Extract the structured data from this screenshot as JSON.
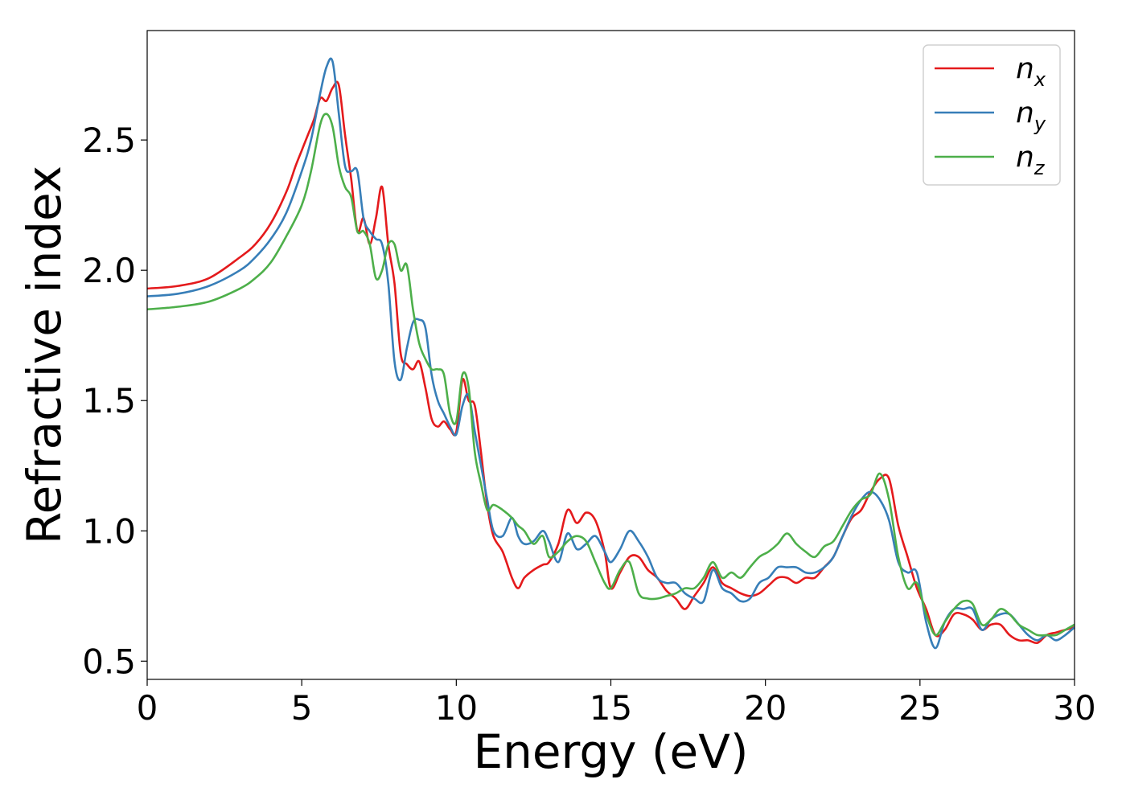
{
  "chart_data": {
    "type": "line",
    "title": "",
    "xlabel": "Energy (eV)",
    "ylabel": "Refractive index",
    "xlim": [
      0,
      30
    ],
    "ylim": [
      0.43,
      2.92
    ],
    "xticks": [
      0,
      5,
      10,
      15,
      20,
      25,
      30
    ],
    "xtick_labels": [
      "0",
      "5",
      "10",
      "15",
      "20",
      "25",
      "30"
    ],
    "yticks": [
      0.5,
      1.0,
      1.5,
      2.0,
      2.5
    ],
    "ytick_labels": [
      "0.5",
      "1.0",
      "1.5",
      "2.0",
      "2.5"
    ],
    "grid": false,
    "legend_position": "top-right",
    "series": [
      {
        "name": "n",
        "subscript": "x",
        "color": "#e41a1c",
        "x": [
          0,
          1,
          2,
          3,
          3.5,
          4,
          4.5,
          4.8,
          5.0,
          5.2,
          5.4,
          5.6,
          5.8,
          6.0,
          6.2,
          6.4,
          6.6,
          6.8,
          7.0,
          7.2,
          7.4,
          7.6,
          7.8,
          8.0,
          8.2,
          8.4,
          8.6,
          8.8,
          9.0,
          9.2,
          9.4,
          9.6,
          9.8,
          10.0,
          10.2,
          10.4,
          10.6,
          10.8,
          11.0,
          11.2,
          11.5,
          11.8,
          12.0,
          12.2,
          12.5,
          12.8,
          13.0,
          13.3,
          13.6,
          13.9,
          14.2,
          14.5,
          14.8,
          15.0,
          15.3,
          15.6,
          15.9,
          16.2,
          16.5,
          16.8,
          17.1,
          17.4,
          17.7,
          18.0,
          18.3,
          18.6,
          18.9,
          19.2,
          19.5,
          19.8,
          20.1,
          20.4,
          20.7,
          21.0,
          21.3,
          21.6,
          21.9,
          22.2,
          22.5,
          22.8,
          23.1,
          23.4,
          23.7,
          24.0,
          24.3,
          24.6,
          24.9,
          25.2,
          25.5,
          25.8,
          26.1,
          26.4,
          26.7,
          27.0,
          27.3,
          27.6,
          27.9,
          28.2,
          28.5,
          28.8,
          29.1,
          29.4,
          29.7,
          30.0
        ],
        "y": [
          1.93,
          1.94,
          1.97,
          2.05,
          2.1,
          2.18,
          2.3,
          2.4,
          2.46,
          2.52,
          2.58,
          2.66,
          2.65,
          2.7,
          2.71,
          2.52,
          2.35,
          2.15,
          2.2,
          2.1,
          2.2,
          2.32,
          2.1,
          1.95,
          1.68,
          1.64,
          1.62,
          1.65,
          1.55,
          1.43,
          1.4,
          1.42,
          1.39,
          1.38,
          1.58,
          1.5,
          1.48,
          1.3,
          1.1,
          0.98,
          0.92,
          0.82,
          0.78,
          0.82,
          0.85,
          0.87,
          0.88,
          0.95,
          1.08,
          1.03,
          1.07,
          1.04,
          0.92,
          0.78,
          0.84,
          0.9,
          0.9,
          0.85,
          0.82,
          0.77,
          0.74,
          0.7,
          0.75,
          0.8,
          0.86,
          0.8,
          0.78,
          0.76,
          0.75,
          0.76,
          0.79,
          0.82,
          0.82,
          0.8,
          0.82,
          0.82,
          0.86,
          0.9,
          0.98,
          1.05,
          1.08,
          1.15,
          1.2,
          1.2,
          1.02,
          0.9,
          0.78,
          0.7,
          0.6,
          0.62,
          0.68,
          0.68,
          0.66,
          0.62,
          0.64,
          0.64,
          0.6,
          0.58,
          0.58,
          0.57,
          0.6,
          0.61,
          0.62,
          0.63
        ]
      },
      {
        "name": "n",
        "subscript": "y",
        "color": "#377eb8",
        "x": [
          0,
          1,
          2,
          3,
          3.5,
          4,
          4.5,
          5.0,
          5.3,
          5.6,
          5.8,
          6.0,
          6.2,
          6.4,
          6.6,
          6.8,
          7.0,
          7.2,
          7.4,
          7.6,
          7.8,
          8.0,
          8.2,
          8.4,
          8.6,
          8.8,
          9.0,
          9.2,
          9.4,
          9.6,
          9.8,
          10.0,
          10.2,
          10.4,
          10.6,
          10.8,
          11.0,
          11.2,
          11.5,
          11.8,
          12.0,
          12.2,
          12.5,
          12.8,
          13.0,
          13.3,
          13.6,
          13.9,
          14.2,
          14.5,
          14.8,
          15.0,
          15.3,
          15.6,
          15.9,
          16.2,
          16.5,
          16.8,
          17.1,
          17.4,
          17.7,
          18.0,
          18.3,
          18.6,
          18.9,
          19.2,
          19.5,
          19.8,
          20.1,
          20.4,
          20.7,
          21.0,
          21.3,
          21.6,
          21.9,
          22.2,
          22.5,
          22.8,
          23.1,
          23.4,
          23.7,
          24.0,
          24.3,
          24.6,
          24.9,
          25.2,
          25.5,
          25.8,
          26.1,
          26.4,
          26.7,
          27.0,
          27.3,
          27.6,
          27.9,
          28.2,
          28.5,
          28.8,
          29.1,
          29.4,
          29.7,
          30.0
        ],
        "y": [
          1.9,
          1.91,
          1.94,
          2.0,
          2.05,
          2.12,
          2.22,
          2.38,
          2.5,
          2.68,
          2.78,
          2.8,
          2.6,
          2.4,
          2.38,
          2.38,
          2.2,
          2.15,
          2.12,
          2.1,
          1.95,
          1.65,
          1.58,
          1.7,
          1.8,
          1.81,
          1.78,
          1.6,
          1.5,
          1.45,
          1.4,
          1.37,
          1.48,
          1.52,
          1.38,
          1.25,
          1.12,
          1.0,
          0.98,
          1.05,
          0.98,
          0.95,
          0.96,
          1.0,
          0.96,
          0.88,
          0.99,
          0.93,
          0.95,
          0.98,
          0.92,
          0.88,
          0.93,
          1.0,
          0.96,
          0.9,
          0.82,
          0.8,
          0.8,
          0.76,
          0.74,
          0.73,
          0.85,
          0.78,
          0.76,
          0.73,
          0.74,
          0.8,
          0.82,
          0.86,
          0.86,
          0.86,
          0.84,
          0.84,
          0.86,
          0.9,
          0.98,
          1.06,
          1.12,
          1.15,
          1.12,
          1.04,
          0.88,
          0.84,
          0.84,
          0.65,
          0.55,
          0.65,
          0.7,
          0.7,
          0.7,
          0.62,
          0.66,
          0.68,
          0.68,
          0.64,
          0.6,
          0.58,
          0.6,
          0.58,
          0.6,
          0.63
        ]
      },
      {
        "name": "n",
        "subscript": "z",
        "color": "#4daf4a",
        "x": [
          0,
          1,
          2,
          3,
          3.5,
          4,
          4.5,
          5.0,
          5.3,
          5.6,
          5.8,
          6.0,
          6.2,
          6.4,
          6.6,
          6.8,
          7.0,
          7.2,
          7.4,
          7.6,
          7.8,
          8.0,
          8.2,
          8.4,
          8.6,
          8.8,
          9.0,
          9.2,
          9.4,
          9.6,
          9.8,
          10.0,
          10.2,
          10.4,
          10.6,
          10.8,
          11.0,
          11.2,
          11.5,
          11.8,
          12.0,
          12.2,
          12.5,
          12.8,
          13.0,
          13.3,
          13.6,
          13.9,
          14.2,
          14.5,
          14.8,
          15.0,
          15.3,
          15.6,
          15.9,
          16.2,
          16.5,
          16.8,
          17.1,
          17.4,
          17.7,
          18.0,
          18.3,
          18.6,
          18.9,
          19.2,
          19.5,
          19.8,
          20.1,
          20.4,
          20.7,
          21.0,
          21.3,
          21.6,
          21.9,
          22.2,
          22.5,
          22.8,
          23.1,
          23.4,
          23.7,
          24.0,
          24.3,
          24.6,
          24.9,
          25.2,
          25.5,
          25.8,
          26.1,
          26.4,
          26.7,
          27.0,
          27.3,
          27.6,
          27.9,
          28.2,
          28.5,
          28.8,
          29.1,
          29.4,
          29.7,
          30.0
        ],
        "y": [
          1.85,
          1.86,
          1.88,
          1.93,
          1.97,
          2.03,
          2.13,
          2.25,
          2.38,
          2.56,
          2.6,
          2.55,
          2.4,
          2.32,
          2.28,
          2.15,
          2.15,
          2.1,
          1.97,
          2.0,
          2.1,
          2.1,
          2.0,
          2.02,
          1.85,
          1.72,
          1.66,
          1.62,
          1.62,
          1.6,
          1.45,
          1.42,
          1.6,
          1.55,
          1.3,
          1.18,
          1.08,
          1.1,
          1.08,
          1.05,
          1.02,
          1.0,
          0.95,
          0.98,
          0.9,
          0.92,
          0.96,
          0.98,
          0.96,
          0.88,
          0.8,
          0.78,
          0.85,
          0.88,
          0.76,
          0.74,
          0.74,
          0.75,
          0.76,
          0.78,
          0.78,
          0.82,
          0.88,
          0.82,
          0.84,
          0.82,
          0.86,
          0.9,
          0.92,
          0.95,
          0.99,
          0.95,
          0.92,
          0.9,
          0.94,
          0.96,
          1.02,
          1.08,
          1.12,
          1.14,
          1.22,
          1.12,
          0.9,
          0.78,
          0.8,
          0.68,
          0.6,
          0.65,
          0.7,
          0.73,
          0.72,
          0.64,
          0.66,
          0.7,
          0.68,
          0.64,
          0.62,
          0.6,
          0.6,
          0.6,
          0.62,
          0.64
        ]
      }
    ]
  }
}
